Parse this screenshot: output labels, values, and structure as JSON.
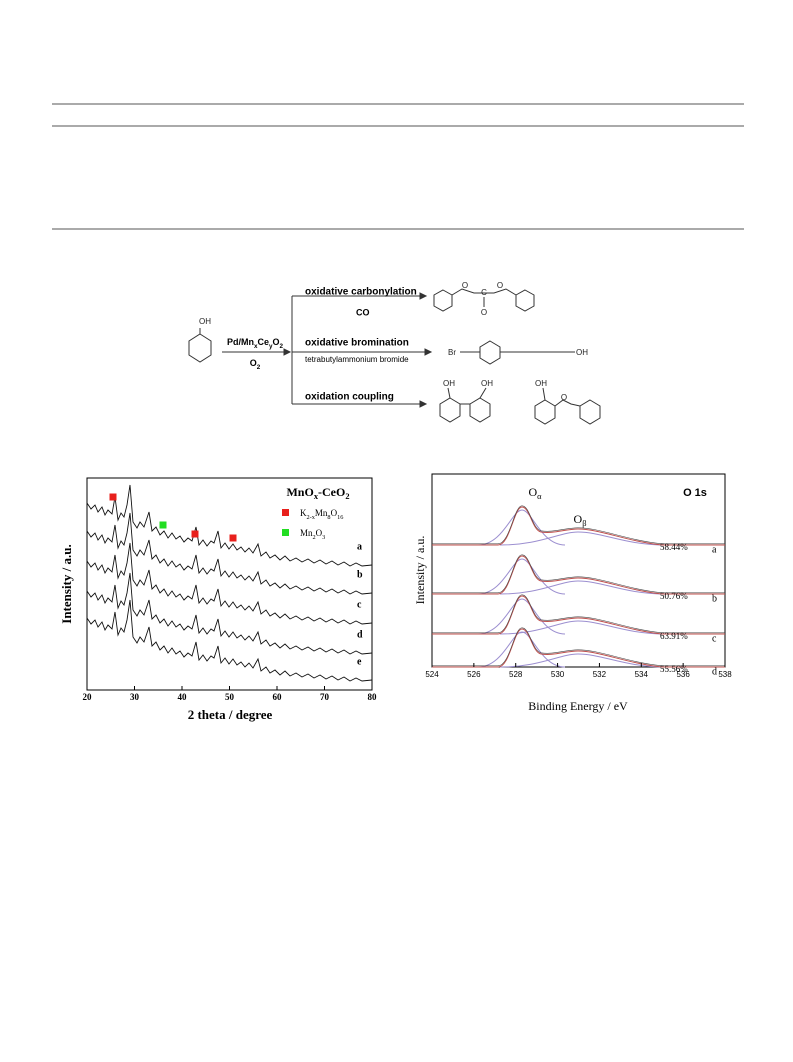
{
  "scheme": {
    "catalyst": [
      "Pd/Mn",
      "x",
      "Ce",
      "y",
      "O",
      "2"
    ],
    "oxidant": [
      "O",
      "2"
    ],
    "reactions": [
      {
        "name": "oxidative carbonylation",
        "condition": "CO"
      },
      {
        "name": "oxidative bromination",
        "condition": "tetrabutylammonium bromide"
      },
      {
        "name": "oxidation coupling"
      }
    ],
    "atom_labels": [
      "OH",
      "O",
      "C",
      "O",
      "O",
      "Br",
      "OH",
      "OH",
      "OH",
      "OH",
      "O"
    ]
  },
  "xrd": {
    "legend_title": [
      "MnO",
      "x",
      "-CeO",
      "2"
    ],
    "legend": [
      {
        "label": [
          "K",
          "2-x",
          "Mn",
          "8",
          "O",
          "16"
        ],
        "color": "#e8201c"
      },
      {
        "label": [
          "Mn",
          "2",
          "O",
          "3"
        ],
        "color": "#22dd22"
      }
    ],
    "xlabel": "2 theta / degree",
    "ylabel": "Intensity / a.u.",
    "xlim": [
      20,
      80
    ],
    "xticks": [
      20,
      30,
      40,
      50,
      60,
      70,
      80
    ],
    "traces": [
      "a",
      "b",
      "c",
      "d",
      "e"
    ]
  },
  "xps": {
    "title": "O 1s",
    "peak_labels": [
      [
        "O",
        "α"
      ],
      [
        "O",
        "β"
      ]
    ],
    "xlabel": "Binding Energy / eV",
    "ylabel": "Intensity / a.u.",
    "xlim": [
      524,
      538
    ],
    "xticks": [
      524,
      526,
      528,
      530,
      532,
      534,
      536,
      538
    ],
    "traces": [
      "a",
      "b",
      "c",
      "d"
    ],
    "percentages": [
      "58.44%",
      "50.76%",
      "63.91%",
      "55.56%"
    ]
  }
}
